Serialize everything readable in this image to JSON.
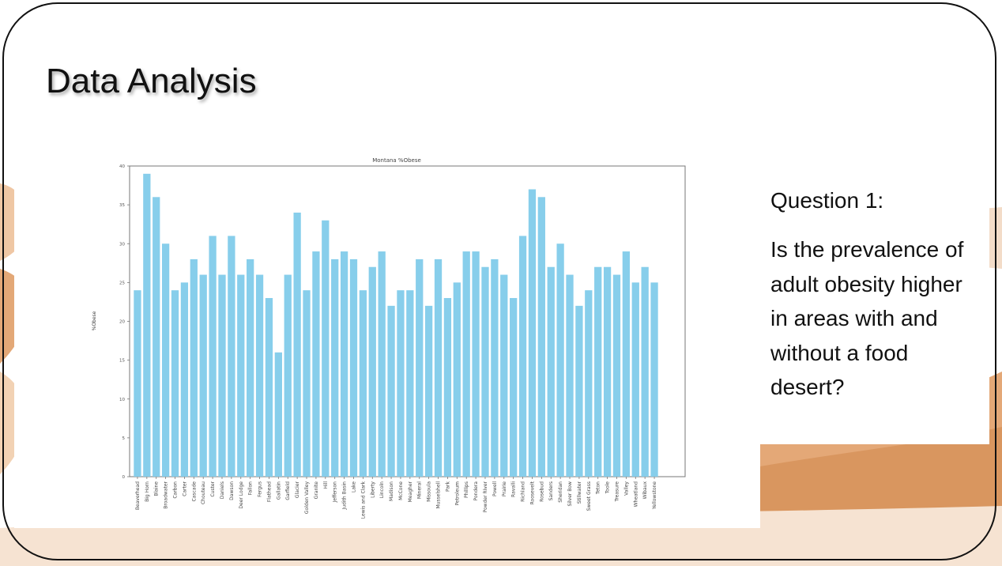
{
  "slide": {
    "title": "Data Analysis",
    "question_heading": "Question 1:",
    "question_text": "Is the prevalence of adult obesity higher in areas with and without a food desert?"
  },
  "colors": {
    "bar": "#87ceeb",
    "frame": "#111111",
    "desert_light": "#f4d9c2",
    "desert_dark": "#d98e58"
  },
  "chart_data": {
    "type": "bar",
    "title": "Montana %Obese",
    "xlabel": "",
    "ylabel": "%Obese",
    "ylim": [
      0,
      40
    ],
    "yticks": [
      0,
      5,
      10,
      15,
      20,
      25,
      30,
      35,
      40
    ],
    "grid": false,
    "categories": [
      "Beaverhead",
      "Big Horn",
      "Blaine",
      "Broadwater",
      "Carbon",
      "Carter",
      "Cascade",
      "Chouteau",
      "Custer",
      "Daniels",
      "Dawson",
      "Deer Lodge",
      "Fallon",
      "Fergus",
      "Flathead",
      "Gallatin",
      "Garfield",
      "Glacier",
      "Golden Valley",
      "Granite",
      "Hill",
      "Jefferson",
      "Judith Basin",
      "Lake",
      "Lewis and Clark",
      "Liberty",
      "Lincoln",
      "Madison",
      "McCone",
      "Meagher",
      "Mineral",
      "Missoula",
      "Musselshell",
      "Park",
      "Petroleum",
      "Phillips",
      "Pondera",
      "Powder River",
      "Powell",
      "Prairie",
      "Ravalli",
      "Richland",
      "Roosevelt",
      "Rosebud",
      "Sanders",
      "Sheridan",
      "Silver Bow",
      "Stillwater",
      "Sweet Grass",
      "Teton",
      "Toole",
      "Treasure",
      "Valley",
      "Wheatland",
      "Wibaux",
      "Yellowstone"
    ],
    "values": [
      24,
      39,
      36,
      30,
      24,
      25,
      28,
      26,
      31,
      26,
      31,
      26,
      28,
      26,
      23,
      16,
      26,
      34,
      24,
      29,
      33,
      28,
      29,
      28,
      24,
      27,
      29,
      22,
      24,
      24,
      28,
      22,
      28,
      23,
      25,
      29,
      29,
      27,
      28,
      26,
      23,
      31,
      37,
      36,
      27,
      30,
      26,
      22,
      24,
      27,
      27,
      26,
      29,
      25,
      27,
      25
    ]
  }
}
